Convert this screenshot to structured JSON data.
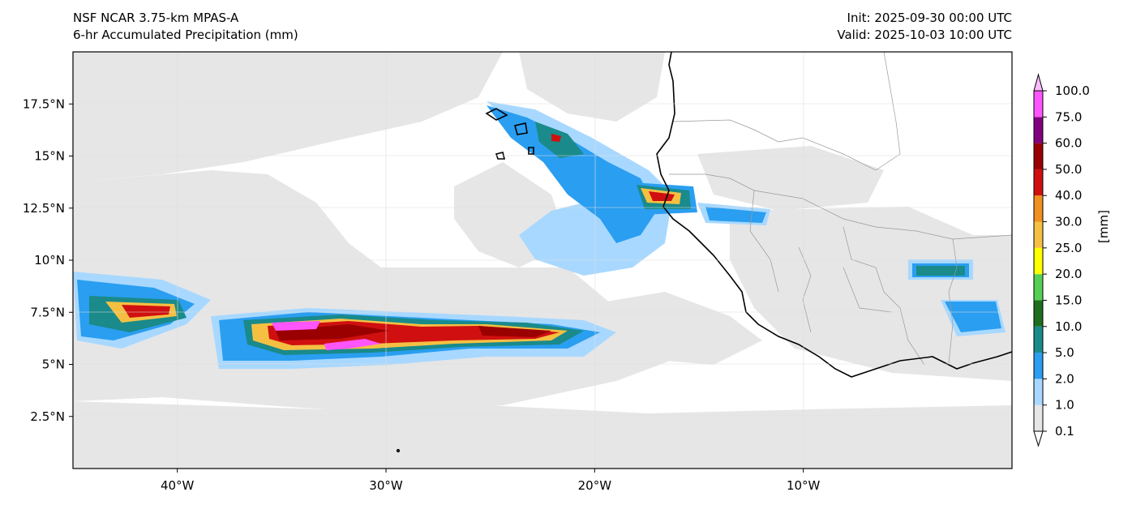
{
  "header": {
    "model": "NSF NCAR 3.75-km MPAS-A",
    "product": "6-hr Accumulated Precipitation (mm)",
    "init": "Init: 2025-09-30 00:00 UTC",
    "valid": "Valid: 2025-10-03 10:00 UTC"
  },
  "axes": {
    "lon_ticks": [
      {
        "label": "40°W",
        "lon": -40
      },
      {
        "label": "30°W",
        "lon": -30
      },
      {
        "label": "20°W",
        "lon": -20
      },
      {
        "label": "10°W",
        "lon": -10
      }
    ],
    "lat_ticks": [
      {
        "label": "17.5°N",
        "lat": 17.5
      },
      {
        "label": "15°N",
        "lat": 15
      },
      {
        "label": "12.5°N",
        "lat": 12.5
      },
      {
        "label": "10°N",
        "lat": 10
      },
      {
        "label": "7.5°N",
        "lat": 7.5
      },
      {
        "label": "5°N",
        "lat": 5
      },
      {
        "label": "2.5°N",
        "lat": 2.5
      }
    ],
    "lon_range": [
      -45,
      0
    ],
    "lat_range": [
      0,
      20
    ]
  },
  "colorbar": {
    "unit_label": "[mm]",
    "levels": [
      "0.1",
      "1.0",
      "2.0",
      "5.0",
      "10.0",
      "15.0",
      "20.0",
      "25.0",
      "30.0",
      "40.0",
      "50.0",
      "60.0",
      "75.0",
      "100.0"
    ],
    "colors": [
      "#e6e6e6",
      "#a8d8ff",
      "#2a9ef0",
      "#1a8a8a",
      "#1e6e1e",
      "#55d055",
      "#ffff00",
      "#f5c042",
      "#f09020",
      "#d01010",
      "#9a0000",
      "#800080",
      "#ff55ff"
    ],
    "extend_low_color": "#ffffff",
    "extend_high_color": "#ffbbff"
  },
  "colors": {
    "ocean": "#ffffff",
    "land": "#ffffff",
    "grid": "#dddddd",
    "coastline": "#000000",
    "border": "#999999"
  }
}
